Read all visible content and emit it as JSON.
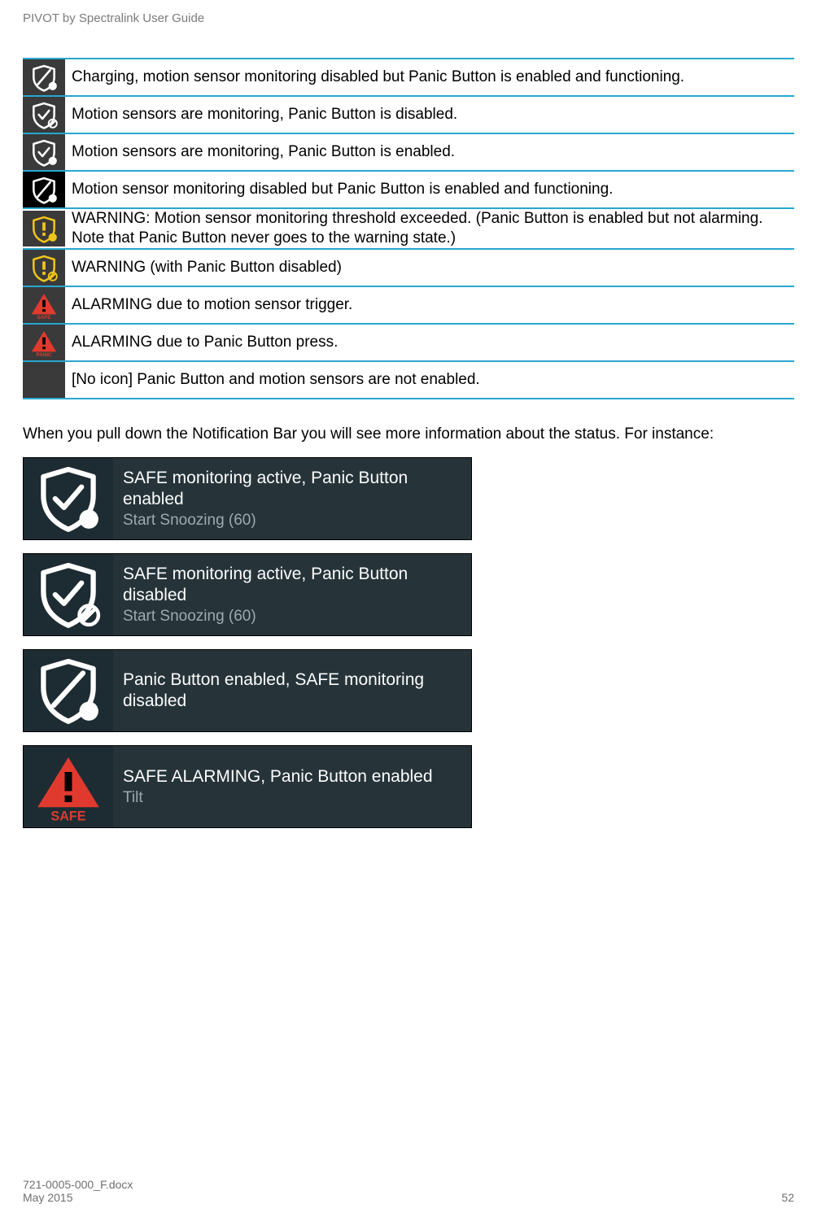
{
  "header": {
    "title": "PIVOT by Spectralink User Guide"
  },
  "footer": {
    "docnum": "721-0005-000_F.docx",
    "date": "May 2015",
    "page": "52"
  },
  "colors": {
    "row_border": "#29a7cf",
    "icon_bg_dark": "#3a3a3a",
    "icon_bg_black": "#000000",
    "shield_outline_white": "#ffffff",
    "shield_outline_yellow": "#f0c419",
    "alarm_red": "#e03a2f",
    "notif_bg": "#26343a",
    "notif_icon_bg": "#1d2c32",
    "notif_title": "#fcfcfc",
    "notif_sub": "#9ea9ad"
  },
  "icon_rows": [
    {
      "variant": "charging_panic_enabled",
      "bg": "#3a3a3a",
      "desc": "Charging, motion sensor monitoring disabled but Panic Button is enabled and functioning."
    },
    {
      "variant": "monitoring_panic_disabled",
      "bg": "#3a3a3a",
      "desc": "Motion sensors are monitoring, Panic Button is disabled."
    },
    {
      "variant": "monitoring_panic_enabled",
      "bg": "#3a3a3a",
      "desc": "Motion sensors are monitoring, Panic Button is enabled."
    },
    {
      "variant": "disabled_panic_enabled",
      "bg": "#000000",
      "desc": "Motion sensor monitoring disabled but Panic Button is enabled and functioning."
    },
    {
      "variant": "warning_panic_enabled",
      "bg": "#3a3a3a",
      "desc": "WARNING: Motion sensor monitoring threshold exceeded. (Panic Button is enabled but not alarming. Note that Panic Button never goes to the warning state.)"
    },
    {
      "variant": "warning_panic_disabled",
      "bg": "#3a3a3a",
      "desc": "WARNING (with Panic Button disabled)"
    },
    {
      "variant": "alarm_safe",
      "bg": "#3a3a3a",
      "desc": "ALARMING due to motion sensor trigger."
    },
    {
      "variant": "alarm_panic",
      "bg": "#3a3a3a",
      "desc": "ALARMING due to Panic Button press."
    },
    {
      "variant": "none",
      "bg": "#3a3a3a",
      "desc": "[No icon] Panic Button and motion sensors are not enabled."
    }
  ],
  "body_paragraph": "When you pull down the Notification Bar you will see more information about the status. For instance:",
  "notifications": [
    {
      "icon_variant": "shield_check_panic",
      "title": "SAFE monitoring active, Panic Button enabled",
      "sub": "Start Snoozing (60)"
    },
    {
      "icon_variant": "shield_check_slash",
      "title": "SAFE monitoring active, Panic Button disabled",
      "sub": "Start Snoozing (60)"
    },
    {
      "icon_variant": "shield_slash_panic",
      "title": "Panic Button enabled, SAFE monitoring disabled",
      "sub": ""
    },
    {
      "icon_variant": "alarm_safe_big",
      "title": "SAFE ALARMING, Panic Button enabled",
      "sub": "Tilt"
    }
  ]
}
